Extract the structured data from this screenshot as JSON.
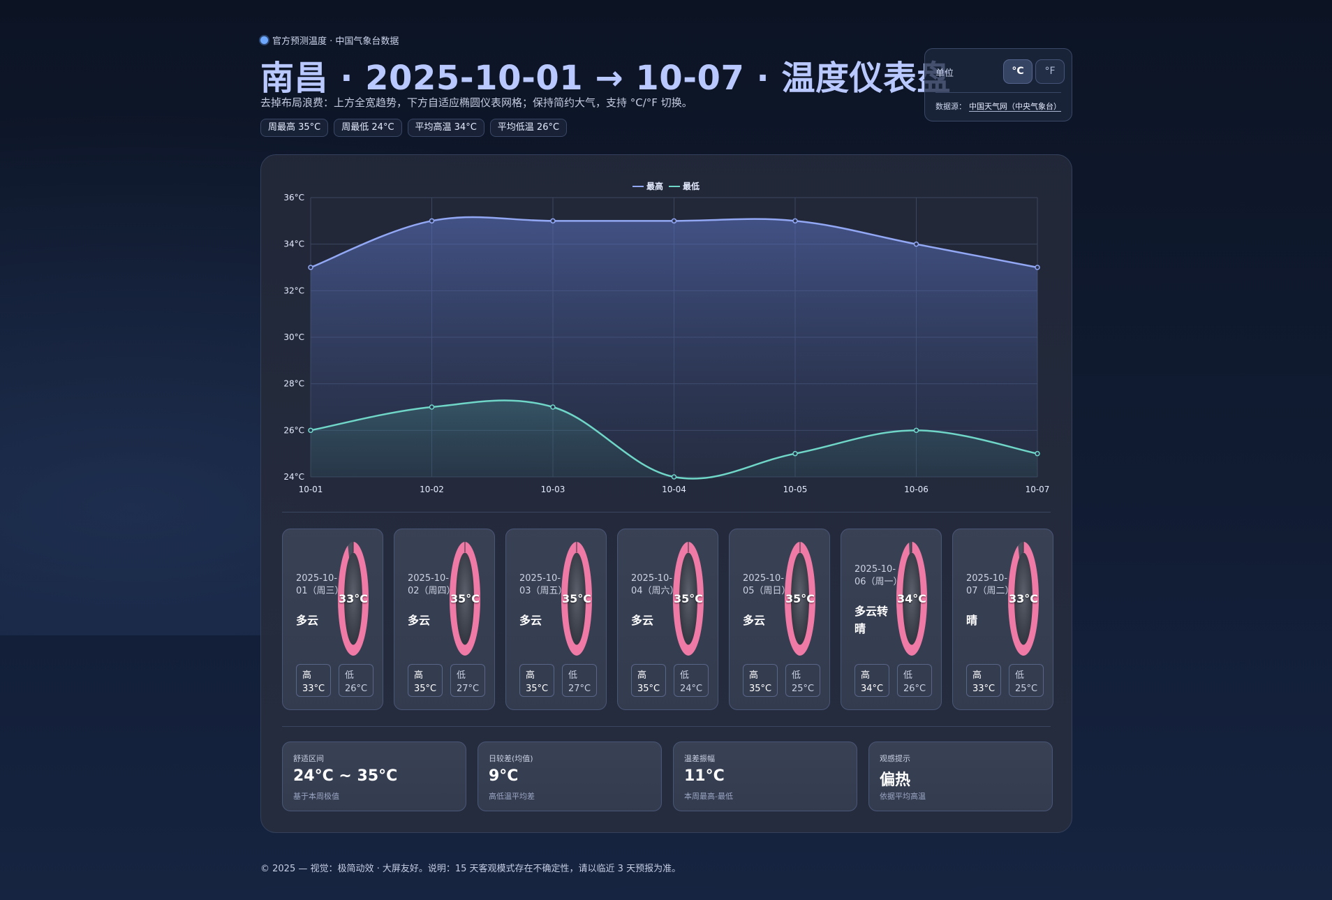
{
  "header": {
    "badge": "官方预测温度 · 中国气象台数据",
    "title": "南昌 · 2025-10-01 → 10-07 · 温度仪表盘",
    "subtitle": "去掉布局浪费：上方全宽趋势，下方自适应椭圆仪表网格；保持简约大气，支持 °C/°F 切换。",
    "stats": [
      "周最高 35°C",
      "周最低 24°C",
      "平均高温 34°C",
      "平均低温 26°C"
    ]
  },
  "unit_panel": {
    "label": "单位",
    "celsius": "°C",
    "fahrenheit": "°F",
    "selected": "°C",
    "source_label": "数据源：",
    "source_link": "中国天气网（中央气象台）"
  },
  "chart_data": {
    "type": "line",
    "categories": [
      "10-01",
      "10-02",
      "10-03",
      "10-04",
      "10-05",
      "10-06",
      "10-07"
    ],
    "series": [
      {
        "name": "最高",
        "values": [
          33,
          35,
          35,
          35,
          35,
          34,
          33
        ],
        "color": "#93a8f5"
      },
      {
        "name": "最低",
        "values": [
          26,
          27,
          27,
          24,
          25,
          26,
          25
        ],
        "color": "#6fd6c8"
      }
    ],
    "yticks": [
      "24°C",
      "26°C",
      "28°C",
      "30°C",
      "32°C",
      "34°C",
      "36°C"
    ],
    "ylim": [
      24,
      36
    ],
    "grid": true,
    "legend": "top-center",
    "area_fill": true
  },
  "days": [
    {
      "date": "2025-10-01（周三）",
      "cond": "多云",
      "temp": "33°C",
      "value": 33,
      "high_label": "高",
      "high": "33°C",
      "low_label": "低",
      "low": "26°C"
    },
    {
      "date": "2025-10-02（周四）",
      "cond": "多云",
      "temp": "35°C",
      "value": 35,
      "high_label": "高",
      "high": "35°C",
      "low_label": "低",
      "low": "27°C"
    },
    {
      "date": "2025-10-03（周五）",
      "cond": "多云",
      "temp": "35°C",
      "value": 35,
      "high_label": "高",
      "high": "35°C",
      "low_label": "低",
      "low": "27°C"
    },
    {
      "date": "2025-10-04（周六）",
      "cond": "多云",
      "temp": "35°C",
      "value": 35,
      "high_label": "高",
      "high": "35°C",
      "low_label": "低",
      "low": "24°C"
    },
    {
      "date": "2025-10-05（周日）",
      "cond": "多云",
      "temp": "35°C",
      "value": 35,
      "high_label": "高",
      "high": "35°C",
      "low_label": "低",
      "low": "25°C"
    },
    {
      "date": "2025-10-06（周一）",
      "cond": "多云转晴",
      "temp": "34°C",
      "value": 34,
      "high_label": "高",
      "high": "34°C",
      "low_label": "低",
      "low": "26°C"
    },
    {
      "date": "2025-10-07（周二）",
      "cond": "晴",
      "temp": "33°C",
      "value": 33,
      "high_label": "高",
      "high": "33°C",
      "low_label": "低",
      "low": "25°C"
    }
  ],
  "gauge": {
    "max": 35,
    "fill_color": "#ef7aa5",
    "track_color": "#4a4f5e"
  },
  "metrics": [
    {
      "label": "舒适区间",
      "value": "24°C ~ 35°C",
      "note": "基于本周极值"
    },
    {
      "label": "日较差(均值)",
      "value": "9°C",
      "note": "高低温平均差"
    },
    {
      "label": "温差振幅",
      "value": "11°C",
      "note": "本周最高-最低"
    },
    {
      "label": "观感提示",
      "value": "偏热",
      "note": "依据平均高温"
    }
  ],
  "footer": "© 2025 — 视觉：极简动效 · 大屏友好。说明：15 天客观模式存在不确定性，请以临近 3 天预报为准。"
}
